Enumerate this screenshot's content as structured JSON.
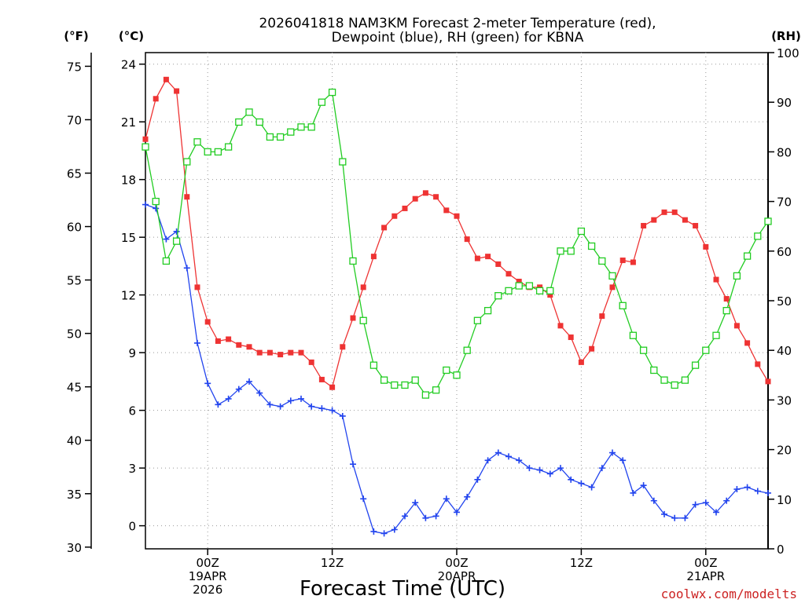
{
  "chart_data": {
    "type": "line",
    "title_line1": "2026041818 NAM3KM Forecast 2-meter Temperature (red),",
    "title_line2": "Dewpoint (blue), RH (green) for KBNA",
    "xlabel": "Forecast Time (UTC)",
    "credit": "coolwx.com/modelts",
    "units": {
      "fahrenheit": "(°F)",
      "celsius": "(°C)",
      "rh": "(RH)"
    },
    "xlim": [
      0,
      60
    ],
    "x_ticks": [
      {
        "hour": 6,
        "line1": "00Z",
        "line2": "19APR",
        "line3": "2026"
      },
      {
        "hour": 18,
        "line1": "12Z",
        "line2": "",
        "line3": ""
      },
      {
        "hour": 30,
        "line1": "00Z",
        "line2": "20APR",
        "line3": ""
      },
      {
        "hour": 42,
        "line1": "12Z",
        "line2": "",
        "line3": ""
      },
      {
        "hour": 54,
        "line1": "00Z",
        "line2": "21APR",
        "line3": ""
      }
    ],
    "y_celsius": {
      "range": [
        -1.2,
        24.6
      ],
      "ticks": [
        "0",
        "3",
        "6",
        "9",
        "12",
        "15",
        "18",
        "21",
        "24"
      ]
    },
    "y_fahrenheit": {
      "range": [
        29.84,
        76.28
      ],
      "ticks": [
        "30",
        "35",
        "40",
        "45",
        "50",
        "55",
        "60",
        "65",
        "70",
        "75"
      ]
    },
    "y_rh": {
      "range": [
        0,
        100
      ],
      "ticks": [
        "0",
        "10",
        "20",
        "30",
        "40",
        "50",
        "60",
        "70",
        "80",
        "90",
        "100"
      ]
    },
    "series": [
      {
        "name": "2-meter Temperature",
        "unit": "C",
        "color": "#ee3333",
        "marker": "filled-square",
        "values": [
          20.1,
          22.2,
          23.2,
          22.6,
          17.1,
          12.4,
          10.6,
          9.6,
          9.7,
          9.4,
          9.3,
          9.0,
          9.0,
          8.9,
          9.0,
          9.0,
          8.5,
          7.6,
          7.2,
          9.3,
          10.8,
          12.4,
          14.0,
          15.5,
          16.1,
          16.5,
          17.0,
          17.3,
          17.1,
          16.4,
          16.1,
          14.9,
          13.9,
          14.0,
          13.6,
          13.1,
          12.7,
          12.4,
          12.4,
          12.0,
          10.4,
          9.8,
          8.5,
          9.2,
          10.9,
          12.4,
          13.8,
          13.7,
          15.6,
          15.9,
          16.3,
          16.3,
          15.9,
          15.6,
          14.5,
          12.8,
          11.8,
          10.4,
          9.5,
          8.4,
          7.5
        ]
      },
      {
        "name": "Dewpoint",
        "unit": "C",
        "color": "#2244ee",
        "marker": "plus",
        "values": [
          16.7,
          16.5,
          14.9,
          15.3,
          13.4,
          9.5,
          7.4,
          6.3,
          6.6,
          7.1,
          7.5,
          6.9,
          6.3,
          6.2,
          6.5,
          6.6,
          6.2,
          6.1,
          6.0,
          5.7,
          3.2,
          1.4,
          -0.3,
          -0.4,
          -0.2,
          0.5,
          1.2,
          0.4,
          0.5,
          1.4,
          0.7,
          1.5,
          2.4,
          3.4,
          3.8,
          3.6,
          3.4,
          3.0,
          2.9,
          2.7,
          3.0,
          2.4,
          2.2,
          2.0,
          3.0,
          3.8,
          3.4,
          1.7,
          2.1,
          1.3,
          0.6,
          0.4,
          0.4,
          1.1,
          1.2,
          0.7,
          1.3,
          1.9,
          2.0,
          1.8,
          1.7
        ]
      },
      {
        "name": "RH",
        "unit": "%",
        "color": "#22cc22",
        "marker": "open-square",
        "values": [
          81,
          70,
          58,
          62,
          78,
          82,
          80,
          80,
          81,
          86,
          88,
          86,
          83,
          83,
          84,
          85,
          85,
          90,
          92,
          78,
          58,
          46,
          37,
          34,
          33,
          33,
          34,
          31,
          32,
          36,
          35,
          40,
          46,
          48,
          51,
          52,
          53,
          53,
          52,
          52,
          60,
          60,
          64,
          61,
          58,
          55,
          49,
          43,
          40,
          36,
          34,
          33,
          34,
          37,
          40,
          43,
          48,
          55,
          59,
          63,
          66
        ]
      }
    ]
  }
}
